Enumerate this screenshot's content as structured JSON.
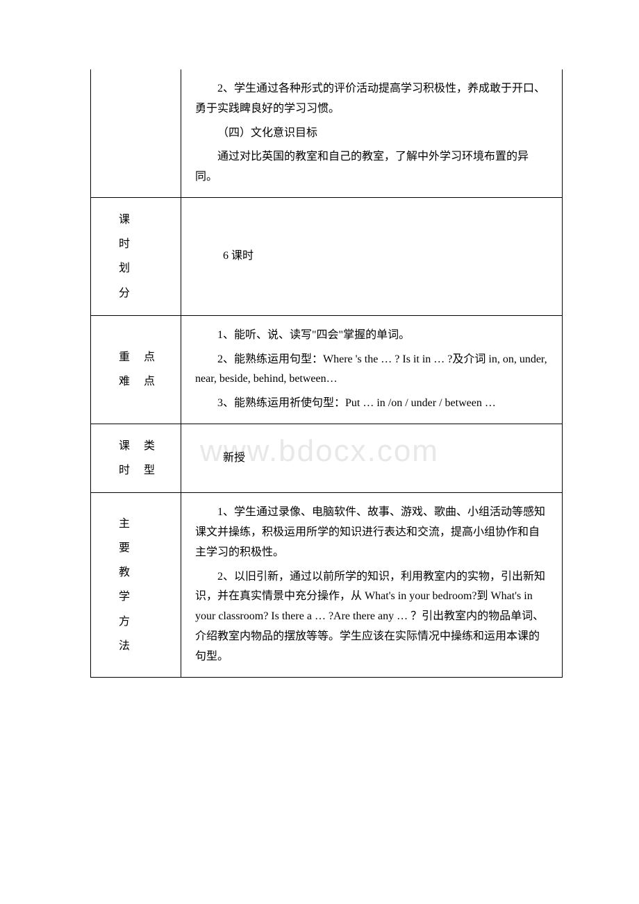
{
  "watermark": "www.bdocx.com",
  "table": {
    "row1": {
      "content": {
        "p1": "2、学生通过各种形式的评价活动提高学习积极性，养成敢于开口、勇于实践睥良好的学习习惯。",
        "p2": "（四）文化意识目标",
        "p3": "通过对比英国的教室和自己的教室，了解中外学习环境布置的异同。"
      }
    },
    "row2": {
      "label": {
        "c1": "课",
        "c2": "时",
        "c3": "划",
        "c4": "分"
      },
      "content": "6 课时"
    },
    "row3": {
      "label": {
        "l1": "重 点",
        "l2": "难 点"
      },
      "content": {
        "p1": "1、能听、说、读写\"四会\"掌握的单词。",
        "p2": "2、能熟练运用句型：Where 's the … ? Is it in … ?及介词 in, on, under, near, beside, behind, between…",
        "p3": "3、能熟练运用祈使句型：Put … in /on / under / between …"
      }
    },
    "row4": {
      "label": {
        "l1": "课 类",
        "l2": "时 型"
      },
      "content": "新授"
    },
    "row5": {
      "label": {
        "c1": "主",
        "c2": "要",
        "c3": "教",
        "c4": "学",
        "c5": "方",
        "c6": "法"
      },
      "content": {
        "p1": "1、学生通过录像、电脑软件、故事、游戏、歌曲、小组活动等感知课文并操练，积极运用所学的知识进行表达和交流，提高小组协作和自主学习的积极性。",
        "p2": "2、以旧引新，通过以前所学的知识，利用教室内的实物，引出新知识，并在真实情景中充分操作，从 What's in your bedroom?到 What's in your classroom? Is there a … ?Are there any … ？引出教室内的物品单词、介绍教室内物品的摆放等等。学生应该在实际情况中操练和运用本课的句型。"
      }
    }
  }
}
